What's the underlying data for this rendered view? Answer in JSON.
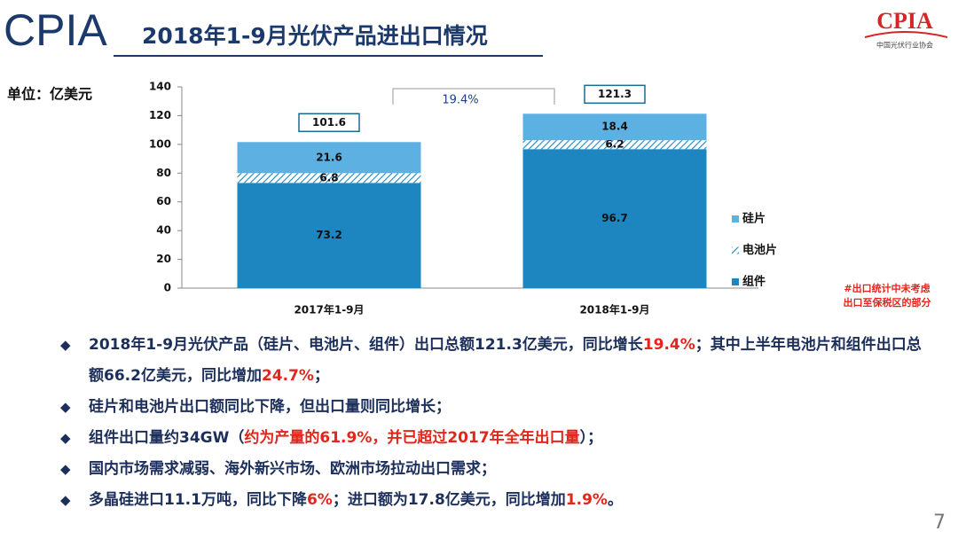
{
  "header": {
    "logo_text": "CPIA",
    "title": "2018年1-9月光伏产品进出口情况",
    "org_logo": "CPIA",
    "org_name": "中国光伏行业协会"
  },
  "chart_data": {
    "type": "stacked_bar",
    "y_label": "单位：亿美元",
    "categories": [
      "2017年1-9月",
      "2018年1-9月"
    ],
    "series": [
      {
        "name": "组件",
        "color": "#1d86c0",
        "values": [
          73.2,
          96.7
        ]
      },
      {
        "name": "电池片",
        "color": "#1d86c0",
        "pattern": "hatch",
        "values": [
          6.8,
          6.2
        ]
      },
      {
        "name": "硅片",
        "color": "#5cb0e2",
        "values": [
          21.6,
          18.4
        ]
      }
    ],
    "totals": [
      101.6,
      121.3
    ],
    "annotation": "19.4%",
    "ylim": [
      0,
      140
    ],
    "yticks": [
      0,
      20,
      40,
      60,
      80,
      100,
      120,
      140
    ],
    "grid": false,
    "legend": "right",
    "footnote": [
      "#出口统计中未考虑",
      "出口至保税区的部分"
    ]
  },
  "bullets": [
    [
      {
        "text": "2018年1-9月光伏产品（硅片、电池片、组件）出口总额121.3亿美元，同比增长"
      },
      {
        "text": "19.4%",
        "color": "#e3261c"
      },
      {
        "text": "；其中上半年电池片和组件出口总额66.2亿美元，同比增加"
      },
      {
        "text": "24.7%",
        "color": "#e3261c"
      },
      {
        "text": "；"
      }
    ],
    [
      {
        "text": "硅片和电池片出口额同比下降，但出口量则同比增长；"
      }
    ],
    [
      {
        "text": "组件出口量约34GW（"
      },
      {
        "text": "约为产量的61.9%，并已超过2017年全年出口量",
        "color": "#e3261c"
      },
      {
        "text": "）；"
      }
    ],
    [
      {
        "text": "国内市场需求减弱、海外新兴市场、欧洲市场拉动出口需求；"
      }
    ],
    [
      {
        "text": "多晶硅进口11.1万吨，同比下降"
      },
      {
        "text": "6%",
        "color": "#e3261c"
      },
      {
        "text": "；进口额为17.8亿美元，同比增加"
      },
      {
        "text": "1.9%",
        "color": "#e3261c"
      },
      {
        "text": "。"
      }
    ]
  ],
  "page_number": "7"
}
